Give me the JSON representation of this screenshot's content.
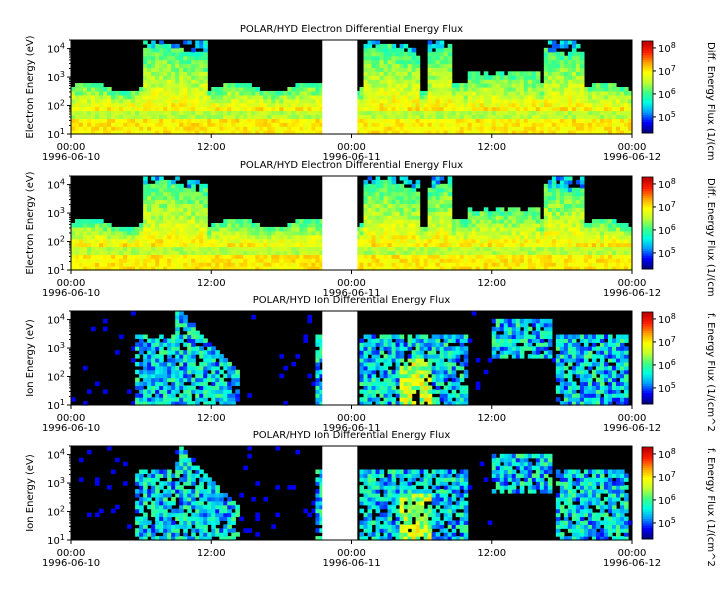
{
  "colors": {
    "background": "#000000",
    "gap": "#ffffff",
    "colormap": [
      "#00007f",
      "#0000ff",
      "#00a0ff",
      "#00ffe0",
      "#40ff80",
      "#c0ff30",
      "#ffff00",
      "#ffa000",
      "#ff2000",
      "#c00000"
    ]
  },
  "chart_data": [
    {
      "type": "heatmap",
      "title": "POLAR/HYD  Electron Differential Energy Flux",
      "ylabel": "Electron Energy (eV)",
      "yscale": "log",
      "ylim": [
        10,
        20000
      ],
      "y_ticks": [
        {
          "base": "10",
          "exp": "1"
        },
        {
          "base": "10",
          "exp": "2"
        },
        {
          "base": "10",
          "exp": "3"
        },
        {
          "base": "10",
          "exp": "4"
        }
      ],
      "x_ticks": [
        {
          "time": "00:00",
          "date": "1996-06-10"
        },
        {
          "time": "12:00",
          "date": ""
        },
        {
          "time": "00:00",
          "date": "1996-06-11"
        },
        {
          "time": "12:00",
          "date": ""
        },
        {
          "time": "00:00",
          "date": "1996-06-12"
        }
      ],
      "xlim": [
        "1996-06-10 00:00",
        "1996-06-12 00:00"
      ],
      "data_gap": [
        "1996-06-10 21:30",
        "1996-06-11 00:30"
      ],
      "colorbar": {
        "label": "Diff. Energy Flux (1/(cm",
        "scale": "log",
        "range": [
          20000,
          200000000
        ],
        "ticks": [
          {
            "base": "10",
            "exp": "5"
          },
          {
            "base": "10",
            "exp": "6"
          },
          {
            "base": "10",
            "exp": "7"
          },
          {
            "base": "10",
            "exp": "8"
          }
        ]
      },
      "species": "electron",
      "seed": 7
    },
    {
      "type": "heatmap",
      "title": "POLAR/HYD  Electron Differential Energy Flux",
      "ylabel": "Electron Energy (eV)",
      "yscale": "log",
      "ylim": [
        10,
        20000
      ],
      "y_ticks": [
        {
          "base": "10",
          "exp": "1"
        },
        {
          "base": "10",
          "exp": "2"
        },
        {
          "base": "10",
          "exp": "3"
        },
        {
          "base": "10",
          "exp": "4"
        }
      ],
      "x_ticks": [
        {
          "time": "00:00",
          "date": "1996-06-10"
        },
        {
          "time": "12:00",
          "date": ""
        },
        {
          "time": "00:00",
          "date": "1996-06-11"
        },
        {
          "time": "12:00",
          "date": ""
        },
        {
          "time": "00:00",
          "date": "1996-06-12"
        }
      ],
      "xlim": [
        "1996-06-10 00:00",
        "1996-06-12 00:00"
      ],
      "data_gap": [
        "1996-06-10 21:30",
        "1996-06-11 00:30"
      ],
      "colorbar": {
        "label": "Diff. Energy Flux (1/(cm",
        "scale": "log",
        "range": [
          20000,
          200000000
        ],
        "ticks": [
          {
            "base": "10",
            "exp": "5"
          },
          {
            "base": "10",
            "exp": "6"
          },
          {
            "base": "10",
            "exp": "7"
          },
          {
            "base": "10",
            "exp": "8"
          }
        ]
      },
      "species": "electron",
      "seed": 11
    },
    {
      "type": "heatmap",
      "title": "POLAR/HYD  Ion Differential Energy Flux",
      "ylabel": "Ion Energy (eV)",
      "yscale": "log",
      "ylim": [
        10,
        20000
      ],
      "y_ticks": [
        {
          "base": "10",
          "exp": "1"
        },
        {
          "base": "10",
          "exp": "2"
        },
        {
          "base": "10",
          "exp": "3"
        },
        {
          "base": "10",
          "exp": "4"
        }
      ],
      "x_ticks": [
        {
          "time": "00:00",
          "date": "1996-06-10"
        },
        {
          "time": "12:00",
          "date": ""
        },
        {
          "time": "00:00",
          "date": "1996-06-11"
        },
        {
          "time": "12:00",
          "date": ""
        },
        {
          "time": "00:00",
          "date": "1996-06-12"
        }
      ],
      "xlim": [
        "1996-06-10 00:00",
        "1996-06-12 00:00"
      ],
      "data_gap": [
        "1996-06-10 21:30",
        "1996-06-11 00:30"
      ],
      "colorbar": {
        "label": "f. Energy Flux (1/(cm^2",
        "scale": "log",
        "range": [
          20000,
          200000000
        ],
        "ticks": [
          {
            "base": "10",
            "exp": "5"
          },
          {
            "base": "10",
            "exp": "6"
          },
          {
            "base": "10",
            "exp": "7"
          },
          {
            "base": "10",
            "exp": "8"
          }
        ]
      },
      "species": "ion",
      "seed": 19
    },
    {
      "type": "heatmap",
      "title": "POLAR/HYD  Ion Differential Energy Flux",
      "ylabel": "Ion Energy (eV)",
      "yscale": "log",
      "ylim": [
        10,
        20000
      ],
      "y_ticks": [
        {
          "base": "10",
          "exp": "1"
        },
        {
          "base": "10",
          "exp": "2"
        },
        {
          "base": "10",
          "exp": "3"
        },
        {
          "base": "10",
          "exp": "4"
        }
      ],
      "x_ticks": [
        {
          "time": "00:00",
          "date": "1996-06-10"
        },
        {
          "time": "12:00",
          "date": ""
        },
        {
          "time": "00:00",
          "date": "1996-06-11"
        },
        {
          "time": "12:00",
          "date": ""
        },
        {
          "time": "00:00",
          "date": "1996-06-12"
        }
      ],
      "xlim": [
        "1996-06-10 00:00",
        "1996-06-12 00:00"
      ],
      "data_gap": [
        "1996-06-10 21:30",
        "1996-06-11 00:30"
      ],
      "colorbar": {
        "label": "f. Energy Flux (1/(cm^2",
        "scale": "log",
        "range": [
          20000,
          200000000
        ],
        "ticks": [
          {
            "base": "10",
            "exp": "5"
          },
          {
            "base": "10",
            "exp": "6"
          },
          {
            "base": "10",
            "exp": "7"
          },
          {
            "base": "10",
            "exp": "8"
          }
        ]
      },
      "species": "ion",
      "seed": 23
    }
  ]
}
